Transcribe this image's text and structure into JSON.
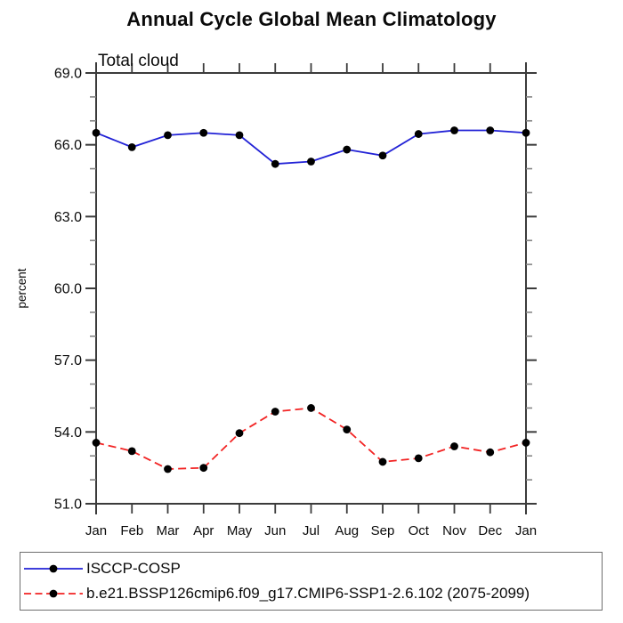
{
  "page": {
    "title": "Annual Cycle Global Mean Climatology",
    "subtitle": "Total cloud"
  },
  "chart_data": {
    "type": "line",
    "title": "Annual Cycle Global Mean Climatology",
    "subtitle": "Total cloud",
    "xlabel": "",
    "ylabel": "percent",
    "categories": [
      "Jan",
      "Feb",
      "Mar",
      "Apr",
      "May",
      "Jun",
      "Jul",
      "Aug",
      "Sep",
      "Oct",
      "Nov",
      "Dec",
      "Jan"
    ],
    "ylim": [
      51.0,
      69.0
    ],
    "ytick_major_interval": 3.0,
    "ytick_minor_interval": 1.0,
    "ytick_labels": [
      "51.0",
      "54.0",
      "57.0",
      "60.0",
      "63.0",
      "66.0",
      "69.0"
    ],
    "grid": false,
    "legend_position": "bottom-left-box",
    "colors": {
      "axis": "#3b3b3b",
      "minor_tick": "#858585",
      "text": "#0a0a0a",
      "series1": "#2222d6",
      "series2": "#f22323",
      "marker": "#000000"
    },
    "series": [
      {
        "name": "ISCCP-COSP",
        "color": "#2222d6",
        "style": "solid",
        "marker": "circle",
        "marker_color": "#000000",
        "values": [
          66.5,
          65.9,
          66.4,
          66.5,
          66.4,
          65.2,
          65.3,
          65.8,
          65.55,
          66.45,
          66.6,
          66.6,
          66.5
        ]
      },
      {
        "name": "b.e21.BSSP126cmip6.f09_g17.CMIP6-SSP1-2.6.102 (2075-2099)",
        "color": "#f22323",
        "style": "dashed",
        "marker": "circle",
        "marker_color": "#000000",
        "values": [
          53.55,
          53.2,
          52.45,
          52.5,
          53.95,
          54.85,
          55.0,
          54.1,
          52.75,
          52.9,
          53.4,
          53.15,
          53.55
        ]
      }
    ]
  }
}
